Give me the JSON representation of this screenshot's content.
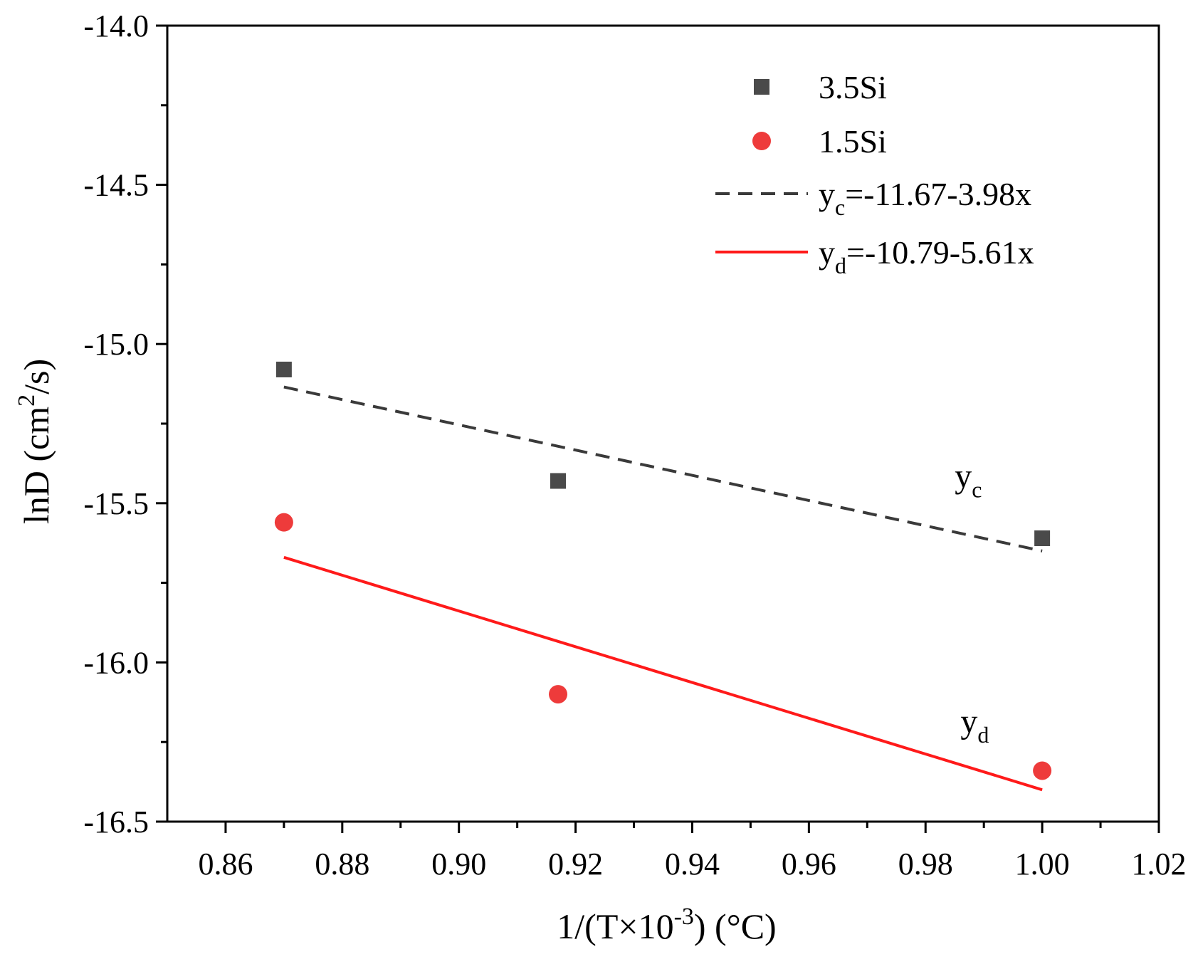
{
  "chart_data": {
    "type": "scatter",
    "title": "",
    "xlabel": {
      "main": "1/(T×10",
      "sup": "-3",
      "tail": ") (°C)"
    },
    "ylabel": {
      "main": "lnD (cm",
      "sup": "2",
      "tail": "/s)"
    },
    "xlim": [
      0.85,
      1.02
    ],
    "ylim": [
      -16.5,
      -14.0
    ],
    "xticks": [
      0.86,
      0.88,
      0.9,
      0.92,
      0.94,
      0.96,
      0.98,
      1.0,
      1.02
    ],
    "xtick_labels": [
      "0.86",
      "0.88",
      "0.90",
      "0.92",
      "0.94",
      "0.96",
      "0.98",
      "1.00",
      "1.02"
    ],
    "yticks": [
      -14.0,
      -14.5,
      -15.0,
      -15.5,
      -16.0,
      -16.5
    ],
    "ytick_labels": [
      "-14.0",
      "-14.5",
      "-15.0",
      "-15.5",
      "-16.0",
      "-16.5"
    ],
    "grid": false,
    "legend_position": "top-right",
    "series": [
      {
        "name": "3.5Si",
        "marker": "square",
        "color": "#4a4a4a",
        "x": [
          0.87,
          0.917,
          1.0
        ],
        "y": [
          -15.08,
          -15.43,
          -15.61
        ]
      },
      {
        "name": "1.5Si",
        "marker": "circle",
        "color": "#ee3b3b",
        "x": [
          0.87,
          0.917,
          1.0
        ],
        "y": [
          -15.56,
          -16.1,
          -16.34
        ]
      }
    ],
    "fits": [
      {
        "name": "y_c",
        "base": "y",
        "sub": "c",
        "equation": "=-11.67-3.98x",
        "style": "dashed",
        "color": "#3a3a3a",
        "x": [
          0.87,
          1.0
        ],
        "y": [
          -15.135,
          -15.65
        ],
        "annotation": {
          "x": 0.985,
          "y": -15.45
        }
      },
      {
        "name": "y_d",
        "base": "y",
        "sub": "d",
        "equation": "=-10.79-5.61x",
        "style": "solid",
        "color": "#ff1a1a",
        "x": [
          0.87,
          1.0
        ],
        "y": [
          -15.67,
          -16.4
        ],
        "annotation": {
          "x": 0.986,
          "y": -16.22
        }
      }
    ]
  }
}
